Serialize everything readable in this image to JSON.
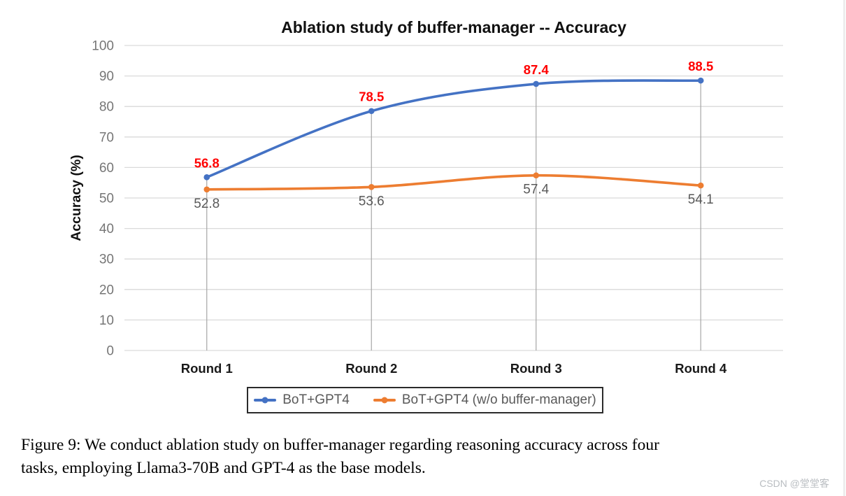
{
  "chart": {
    "title": "Ablation study of buffer-manager -- Accuracy",
    "ylabel": "Accuracy (%)"
  },
  "chart_data": {
    "type": "line",
    "title": "Ablation study of buffer-manager -- Accuracy",
    "xlabel": "",
    "ylabel": "Accuracy (%)",
    "categories": [
      "Round 1",
      "Round 2",
      "Round 3",
      "Round 4"
    ],
    "series": [
      {
        "name": "BoT+GPT4",
        "color": "#4472C4",
        "values": [
          56.8,
          78.5,
          87.4,
          88.5
        ],
        "label_color": "#FF0000",
        "label_position": "above",
        "label_bold": true
      },
      {
        "name": "BoT+GPT4 (w/o buffer-manager)",
        "color": "#ED7D31",
        "values": [
          52.8,
          53.6,
          57.4,
          54.1
        ],
        "label_color": "#595959",
        "label_position": "below",
        "label_bold": false
      }
    ],
    "ylim": [
      0,
      100
    ],
    "yticks": [
      0,
      10,
      20,
      30,
      40,
      50,
      60,
      70,
      80,
      90,
      100
    ],
    "grid": true,
    "drop_lines": true,
    "legend_position": "bottom"
  },
  "caption": {
    "line1": "Figure 9: We conduct ablation study on buffer-manager regarding reasoning accuracy across four",
    "line2": "tasks, employing Llama3-70B and GPT-4 as the base models."
  },
  "watermark": "CSDN @堂堂客"
}
